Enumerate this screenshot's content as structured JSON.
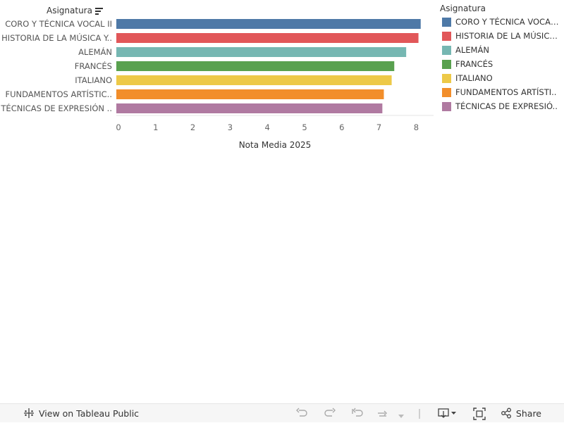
{
  "header": {
    "row_field": "Asignatura"
  },
  "chart_data": {
    "type": "bar",
    "orientation": "horizontal",
    "categories": [
      "CORO Y TÉCNICA VOCAL II",
      "HISTORIA DE LA MÚSICA Y..",
      "ALEMÁN",
      "FRANCÉS",
      "ITALIANO",
      "FUNDAMENTOS ARTÍSTIC..",
      "TÉCNICAS DE EXPRESIÓN .."
    ],
    "values": [
      8.12,
      8.06,
      7.73,
      7.41,
      7.34,
      7.13,
      7.09
    ],
    "colors": [
      "#4e79a7",
      "#e15759",
      "#76b7b2",
      "#59a14f",
      "#edc948",
      "#f28e2b",
      "#b07aa1"
    ],
    "xlabel": "Nota Media 2025",
    "ylabel": "Asignatura",
    "xlim": [
      0,
      8.4
    ],
    "xticks": [
      "0",
      "1",
      "2",
      "3",
      "4",
      "5",
      "6",
      "7",
      "8"
    ],
    "legend": "right"
  },
  "legend": {
    "title": "Asignatura",
    "items": [
      {
        "label": "CORO Y TÉCNICA VOCAL II",
        "color": "#4e79a7"
      },
      {
        "label": "HISTORIA DE LA MÚSICA ..",
        "color": "#e15759"
      },
      {
        "label": "ALEMÁN",
        "color": "#76b7b2"
      },
      {
        "label": "FRANCÉS",
        "color": "#59a14f"
      },
      {
        "label": "ITALIANO",
        "color": "#edc948"
      },
      {
        "label": "FUNDAMENTOS ARTÍSTI..",
        "color": "#f28e2b"
      },
      {
        "label": "TÉCNICAS DE EXPRESIÓ..",
        "color": "#b07aa1"
      }
    ]
  },
  "footer": {
    "view_label": "View on Tableau Public",
    "share_label": "Share",
    "icons": [
      "tableau-logo-icon",
      "undo-icon",
      "redo-icon",
      "revert-icon",
      "refresh-icon",
      "pause-dropdown-icon",
      "download-icon",
      "fullscreen-icon",
      "share-icon"
    ]
  }
}
